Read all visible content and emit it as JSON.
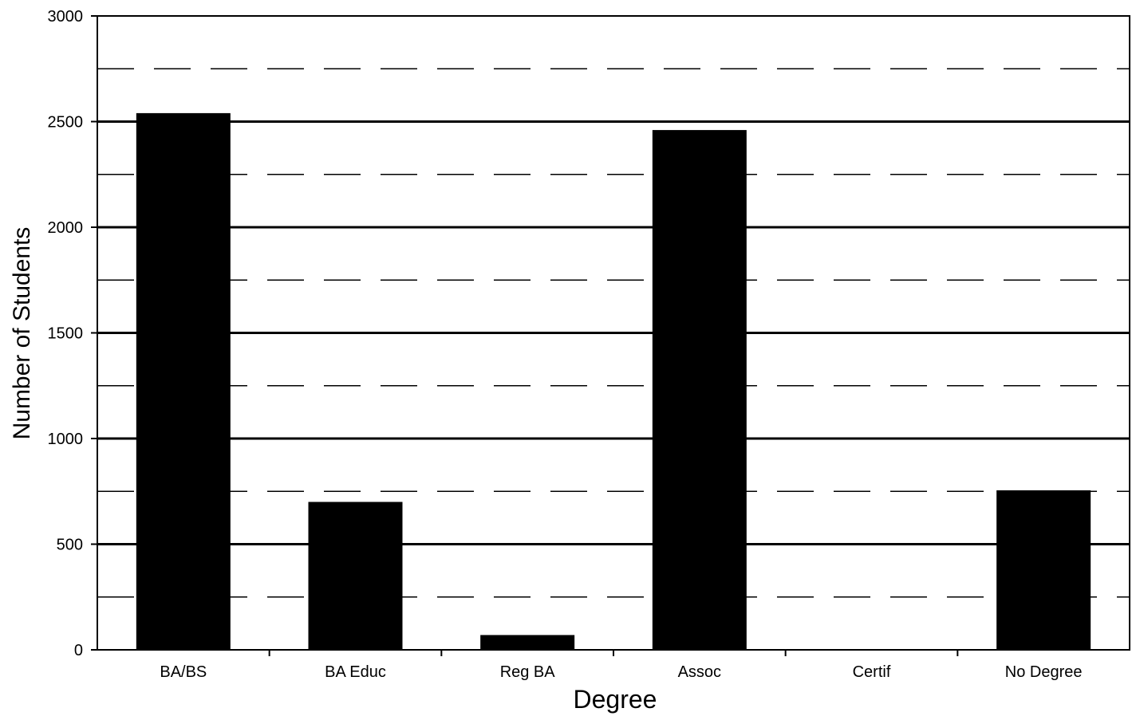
{
  "chart_data": {
    "type": "bar",
    "categories": [
      "BA/BS",
      "BA Educ",
      "Reg BA",
      "Assoc",
      "Certif",
      "No Degree"
    ],
    "values": [
      2540,
      700,
      70,
      2460,
      0,
      755
    ],
    "title": "",
    "xlabel": "Degree",
    "ylabel": "Number of Students",
    "ylim": [
      0,
      3000
    ],
    "yticks": [
      "0",
      "500",
      "1000",
      "1500",
      "2000",
      "2500",
      "3000"
    ],
    "major_grid_step": 500,
    "minor_grid_step": 250,
    "grid": true,
    "bar_color": "#000000"
  }
}
